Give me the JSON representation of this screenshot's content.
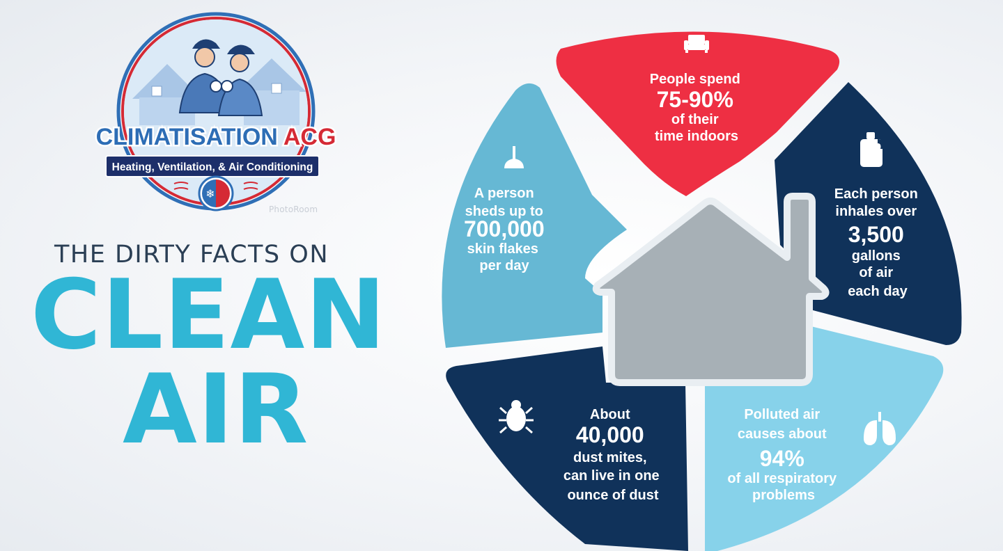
{
  "logo": {
    "brand_main": "CLIMATISATION",
    "brand_accent": "ACG",
    "tagline": "Heating, Ventilation, & Air Conditioning",
    "icon": "technicians-badge-icon"
  },
  "watermark": "PhotoRoom",
  "headline": {
    "top": "THE DIRTY FACTS ON",
    "line1": "CLEAN",
    "line2": "AIR"
  },
  "colors": {
    "red": "#ee2f43",
    "navy": "#10325a",
    "light_blue": "#66b8d4",
    "sky_blue": "#87d2ea",
    "house_gray": "#a7b0b6",
    "headline_teal": "#30b6d5"
  },
  "facts": [
    {
      "id": "indoors",
      "icon": "sofa-icon",
      "lines": [
        "People spend",
        "75-90%",
        "of their",
        "time indoors"
      ]
    },
    {
      "id": "air",
      "icon": "jug-icon",
      "lines": [
        "Each person",
        "inhales over",
        "3,500",
        "gallons",
        "of air",
        "each day"
      ]
    },
    {
      "id": "respiratory",
      "icon": "lungs-icon",
      "lines": [
        "Polluted air",
        "causes about",
        "94%",
        "of all respiratory",
        "problems"
      ]
    },
    {
      "id": "mites",
      "icon": "bug-icon",
      "lines": [
        "About",
        "40,000",
        "dust mites,",
        "can live in one",
        "ounce of dust"
      ]
    },
    {
      "id": "skin",
      "icon": "feather-duster-icon",
      "lines": [
        "A person",
        "sheds up to",
        "700,000",
        "skin flakes",
        "per day"
      ]
    }
  ]
}
